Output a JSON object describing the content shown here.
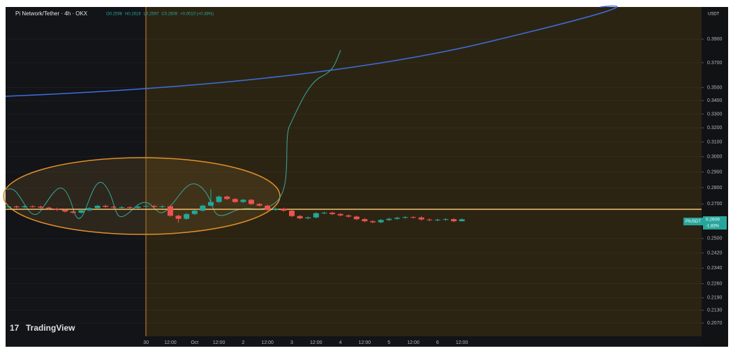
{
  "chart_data": {
    "type": "candlestick",
    "title": "Pi Network/Tether · 4h · OKX",
    "ohlc_legend": [
      "O0.2598",
      "H0.2616",
      "L0.2597",
      "C0.2609",
      "+0.0010 (+0.38%)"
    ],
    "currency": "USDT",
    "watermark": "TradingView",
    "last_price": {
      "symbol": "PIUSDT",
      "value": 0.2609,
      "change": "-1.83%"
    },
    "up_color": "#26a69a",
    "down_color": "#ef5350",
    "log_scale": true,
    "grid": true,
    "categories": [
      null,
      null,
      null,
      null,
      null,
      null,
      null,
      null,
      null,
      null,
      null,
      null,
      null,
      null,
      null,
      null,
      null,
      "30",
      null,
      null,
      "12:00",
      null,
      null,
      "Oct",
      null,
      null,
      "12:00",
      null,
      null,
      "2",
      null,
      null,
      "12:00",
      null,
      null,
      "3",
      null,
      null,
      "12:00",
      null,
      null,
      "4",
      null,
      null,
      "12:00",
      null,
      null,
      "5",
      null,
      null,
      "12:00",
      null,
      null,
      "6",
      null,
      null,
      "12:00"
    ],
    "open": [
      0.268,
      0.2685,
      0.268,
      0.2686,
      0.2684,
      0.2678,
      0.2672,
      0.2664,
      0.2655,
      0.2648,
      0.2662,
      0.2675,
      0.2689,
      0.2683,
      0.2679,
      0.2681,
      0.2677,
      0.2684,
      0.2688,
      0.2682,
      0.2686,
      0.263,
      0.2612,
      0.264,
      0.266,
      0.269,
      0.2712,
      0.2745,
      0.273,
      0.2712,
      0.2725,
      0.27,
      0.269,
      0.2665,
      0.2672,
      0.266,
      0.2628,
      0.2615,
      0.262,
      0.2645,
      0.2648,
      0.264,
      0.2632,
      0.2625,
      0.261,
      0.2598,
      0.2592,
      0.2605,
      0.2612,
      0.2618,
      0.2622,
      0.262,
      0.2608,
      0.2604,
      0.2607,
      0.261,
      0.2598
    ],
    "high": [
      0.2691,
      0.2691,
      0.2692,
      0.2692,
      0.269,
      0.2684,
      0.2678,
      0.267,
      0.2661,
      0.2668,
      0.2681,
      0.2695,
      0.2695,
      0.2689,
      0.2687,
      0.2687,
      0.269,
      0.2694,
      0.2694,
      0.2692,
      0.2692,
      0.2636,
      0.2646,
      0.2666,
      0.2696,
      0.279,
      0.2751,
      0.2751,
      0.2736,
      0.2731,
      0.2731,
      0.2706,
      0.2696,
      0.2678,
      0.2678,
      0.2666,
      0.2634,
      0.2626,
      0.2651,
      0.2654,
      0.2654,
      0.2646,
      0.2638,
      0.2631,
      0.2616,
      0.2604,
      0.2611,
      0.2618,
      0.2624,
      0.2628,
      0.2628,
      0.2626,
      0.2614,
      0.2613,
      0.2616,
      0.2616,
      0.2616
    ],
    "low": [
      0.2674,
      0.2674,
      0.2674,
      0.2678,
      0.2672,
      0.2666,
      0.2658,
      0.2649,
      0.2642,
      0.2642,
      0.2656,
      0.2669,
      0.2677,
      0.2673,
      0.2673,
      0.2671,
      0.2671,
      0.2678,
      0.2676,
      0.2676,
      0.2624,
      0.259,
      0.2606,
      0.2634,
      0.2654,
      0.2684,
      0.2706,
      0.2724,
      0.2706,
      0.2706,
      0.2694,
      0.2684,
      0.2659,
      0.2659,
      0.2654,
      0.2622,
      0.2609,
      0.2609,
      0.2614,
      0.2639,
      0.2634,
      0.2626,
      0.2619,
      0.2604,
      0.2592,
      0.2586,
      0.2586,
      0.2599,
      0.2606,
      0.2612,
      0.2614,
      0.2602,
      0.2598,
      0.2598,
      0.2601,
      0.2592,
      0.2597
    ],
    "close": [
      0.2685,
      0.268,
      0.2686,
      0.2684,
      0.2678,
      0.2672,
      0.2664,
      0.2655,
      0.2648,
      0.2662,
      0.2675,
      0.2689,
      0.2683,
      0.2679,
      0.2681,
      0.2677,
      0.2684,
      0.2688,
      0.2682,
      0.2686,
      0.263,
      0.2612,
      0.264,
      0.266,
      0.269,
      0.2712,
      0.2745,
      0.273,
      0.2712,
      0.2725,
      0.27,
      0.269,
      0.2665,
      0.2672,
      0.266,
      0.2628,
      0.2615,
      0.262,
      0.2645,
      0.2648,
      0.264,
      0.2632,
      0.2625,
      0.261,
      0.2598,
      0.2592,
      0.2605,
      0.2612,
      0.2618,
      0.2622,
      0.262,
      0.2608,
      0.2604,
      0.2607,
      0.261,
      0.2598,
      0.2609
    ],
    "ylim": [
      0.201,
      0.419
    ],
    "yticks": [
      {
        "value": 0.39,
        "label": "0.3900"
      },
      {
        "value": 0.37,
        "label": "0.3700"
      },
      {
        "value": 0.35,
        "label": "0.3500"
      },
      {
        "value": 0.34,
        "label": "0.3400"
      },
      {
        "value": 0.33,
        "label": "0.3300"
      },
      {
        "value": 0.32,
        "label": "0.3200"
      },
      {
        "value": 0.31,
        "label": "0.3100"
      },
      {
        "value": 0.3,
        "label": "0.3000"
      },
      {
        "value": 0.29,
        "label": "0.2900"
      },
      {
        "value": 0.28,
        "label": "0.2800"
      },
      {
        "value": 0.27,
        "label": "0.2700"
      },
      {
        "value": 0.25,
        "label": "0.2500"
      },
      {
        "value": 0.242,
        "label": "0.2420"
      },
      {
        "value": 0.234,
        "label": "0.2340"
      },
      {
        "value": 0.226,
        "label": "0.2260"
      },
      {
        "value": 0.219,
        "label": "0.2190"
      },
      {
        "value": 0.213,
        "label": "0.2130"
      },
      {
        "value": 0.207,
        "label": "0.2070"
      }
    ]
  }
}
